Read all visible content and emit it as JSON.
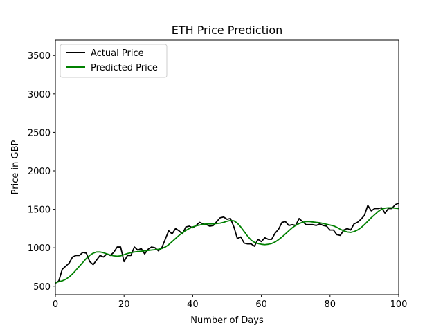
{
  "chart_data": {
    "type": "line",
    "title": "ETH Price Prediction",
    "xlabel": "Number of Days",
    "ylabel": "Price in GBP",
    "xlim": [
      0,
      100
    ],
    "ylim": [
      390,
      3700
    ],
    "xticks": [
      0,
      20,
      40,
      60,
      80,
      100
    ],
    "yticks": [
      500,
      1000,
      1500,
      2000,
      2500,
      3000,
      3500
    ],
    "grid": false,
    "legend_position": "upper-left",
    "series": [
      {
        "name": "Actual Price",
        "color": "#000000",
        "x": [
          0,
          1,
          2,
          3,
          4,
          5,
          6,
          7,
          8,
          9,
          10,
          11,
          12,
          13,
          14,
          15,
          16,
          17,
          18,
          19,
          20,
          21,
          22,
          23,
          24,
          25,
          26,
          27,
          28,
          29,
          30,
          31,
          32,
          33,
          34,
          35,
          36,
          37,
          38,
          39,
          40,
          41,
          42,
          43,
          44,
          45,
          46,
          47,
          48,
          49,
          50,
          51,
          52,
          53,
          54,
          55,
          56,
          57,
          58,
          59,
          60,
          61,
          62,
          63,
          64,
          65,
          66,
          67,
          68,
          69,
          70,
          71,
          72,
          73,
          74,
          75,
          76,
          77,
          78,
          79,
          80,
          81,
          82,
          83,
          84,
          85,
          86,
          87,
          88,
          89,
          90,
          91,
          92,
          93,
          94,
          95,
          96,
          97,
          98,
          99,
          100
        ],
        "values": [
          540,
          570,
          720,
          760,
          800,
          880,
          900,
          900,
          940,
          930,
          820,
          780,
          840,
          900,
          880,
          920,
          900,
          940,
          1010,
          1010,
          820,
          900,
          900,
          1010,
          970,
          990,
          920,
          980,
          1010,
          1000,
          960,
          1000,
          1110,
          1220,
          1180,
          1250,
          1220,
          1180,
          1270,
          1280,
          1260,
          1290,
          1330,
          1310,
          1300,
          1280,
          1290,
          1340,
          1390,
          1400,
          1370,
          1380,
          1270,
          1120,
          1140,
          1060,
          1050,
          1050,
          1020,
          1110,
          1080,
          1130,
          1110,
          1110,
          1190,
          1240,
          1330,
          1340,
          1290,
          1300,
          1290,
          1380,
          1340,
          1300,
          1300,
          1300,
          1290,
          1310,
          1290,
          1280,
          1230,
          1230,
          1170,
          1160,
          1230,
          1250,
          1230,
          1310,
          1330,
          1370,
          1420,
          1550,
          1480,
          1510,
          1510,
          1520,
          1450,
          1510,
          1510,
          1560,
          1580
        ]
      },
      {
        "name": "Predicted Price",
        "color": "#008000",
        "x": [
          0,
          1,
          2,
          3,
          4,
          5,
          6,
          7,
          8,
          9,
          10,
          11,
          12,
          13,
          14,
          15,
          16,
          17,
          18,
          19,
          20,
          21,
          22,
          23,
          24,
          25,
          26,
          27,
          28,
          29,
          30,
          31,
          32,
          33,
          34,
          35,
          36,
          37,
          38,
          39,
          40,
          41,
          42,
          43,
          44,
          45,
          46,
          47,
          48,
          49,
          50,
          51,
          52,
          53,
          54,
          55,
          56,
          57,
          58,
          59,
          60,
          61,
          62,
          63,
          64,
          65,
          66,
          67,
          68,
          69,
          70,
          71,
          72,
          73,
          74,
          75,
          76,
          77,
          78,
          79,
          80,
          81,
          82,
          83,
          84,
          85,
          86,
          87,
          88,
          89,
          90,
          91,
          92,
          93,
          94,
          95,
          96,
          97,
          98,
          99,
          100
        ],
        "values": [
          545,
          560,
          570,
          590,
          620,
          660,
          710,
          760,
          810,
          860,
          900,
          930,
          945,
          945,
          935,
          920,
          905,
          895,
          890,
          895,
          910,
          925,
          935,
          945,
          950,
          955,
          960,
          965,
          970,
          975,
          980,
          990,
          1010,
          1040,
          1080,
          1120,
          1160,
          1195,
          1225,
          1250,
          1270,
          1285,
          1295,
          1305,
          1310,
          1310,
          1310,
          1315,
          1320,
          1330,
          1345,
          1355,
          1350,
          1320,
          1270,
          1210,
          1150,
          1100,
          1070,
          1055,
          1045,
          1040,
          1045,
          1055,
          1075,
          1105,
          1140,
          1180,
          1220,
          1260,
          1290,
          1315,
          1330,
          1340,
          1340,
          1335,
          1330,
          1325,
          1315,
          1305,
          1295,
          1285,
          1265,
          1240,
          1220,
          1205,
          1200,
          1210,
          1230,
          1260,
          1300,
          1345,
          1390,
          1430,
          1470,
          1500,
          1515,
          1520,
          1520,
          1515,
          1510
        ]
      }
    ]
  }
}
